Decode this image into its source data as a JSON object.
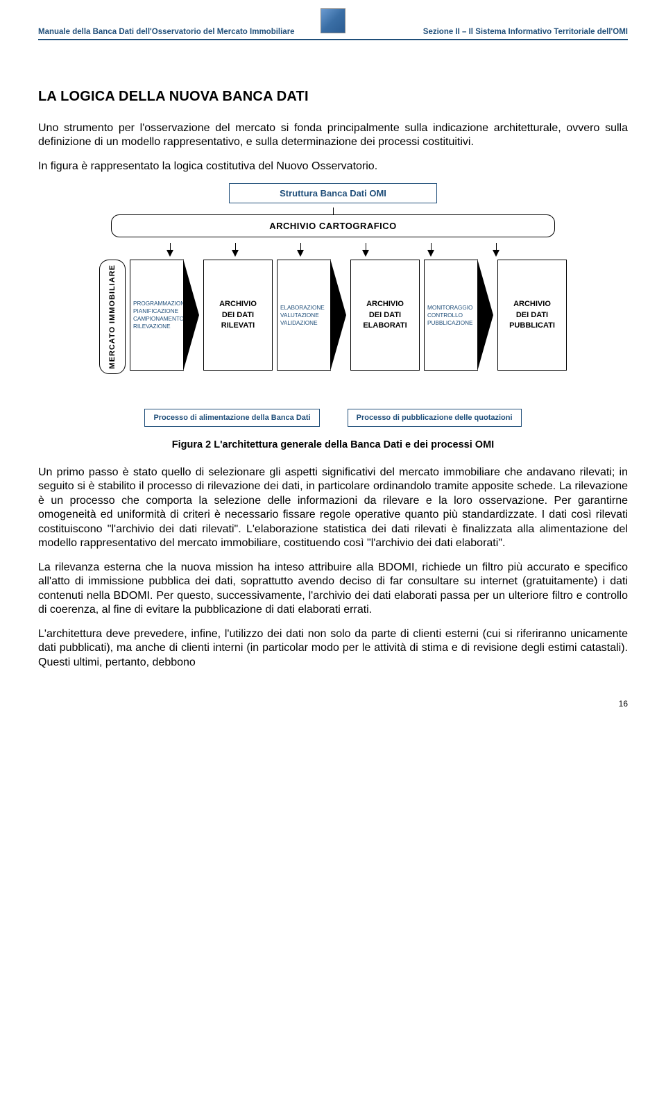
{
  "header": {
    "left": "Manuale della Banca Dati dell'Osservatorio del Mercato Immobiliare",
    "right": "Sezione II – Il Sistema Informativo Territoriale dell'OMI"
  },
  "title": "LA LOGICA DELLA NUOVA BANCA DATI",
  "paragraphs": {
    "p1": "Uno strumento per l'osservazione del mercato si fonda principalmente sulla indicazione architetturale, ovvero sulla definizione di un modello rappresentativo, e sulla determinazione dei processi costituitivi.",
    "p2": "In figura è rappresentato la logica costitutiva del Nuovo Osservatorio.",
    "p3": "Un primo passo è stato quello di selezionare gli aspetti significativi del mercato immobiliare che andavano rilevati; in seguito si è stabilito il processo di rilevazione dei dati, in particolare ordinandolo tramite apposite schede. La rilevazione è un processo che comporta la selezione delle informazioni da rilevare e la loro osservazione. Per garantirne omogeneità ed uniformità di criteri è necessario fissare regole operative quanto più standardizzate. I dati così rilevati costituiscono \"l'archivio dei dati rilevati\". L'elaborazione statistica dei dati rilevati è finalizzata alla alimentazione del modello rappresentativo del mercato immobiliare, costituendo così \"l'archivio dei dati elaborati\".",
    "p4": "La rilevanza esterna che la nuova mission ha inteso attribuire alla BDOMI, richiede un filtro più accurato e specifico all'atto di immissione pubblica dei dati, soprattutto avendo deciso di far consultare su internet (gratuitamente) i dati contenuti nella BDOMI. Per questo, successivamente, l'archivio dei dati elaborati passa per un ulteriore filtro e controllo di coerenza, al fine di evitare la pubblicazione di dati elaborati errati.",
    "p5": "L'architettura deve prevedere, infine, l'utilizzo dei dati non solo da parte di clienti esterni (cui si riferiranno unicamente dati pubblicati), ma anche di clienti interni (in particolar modo per le attività di stima e di revisione degli estimi catastali). Questi ultimi, pertanto, debbono"
  },
  "figure_caption": "Figura 2 L'architettura generale della Banca Dati e dei processi OMI",
  "diagram": {
    "title": "Struttura Banca Dati OMI",
    "carto": "ARCHIVIO CARTOGRAFICO",
    "mercato": "MERCATO IMMOBILIARE",
    "chev1_l1": "PROGRAMMAZIONE",
    "chev1_l2": "PIANIFICAZIONE",
    "chev1_l3": "CAMPIONAMENTO",
    "chev1_l4": "RILEVAZIONE",
    "arch1_l1": "ARCHIVIO",
    "arch1_l2": "DEI DATI",
    "arch1_l3": "RILEVATI",
    "chev2_l1": "ELABORAZIONE",
    "chev2_l2": "VALUTAZIONE",
    "chev2_l3": "VALIDAZIONE",
    "arch2_l1": "ARCHIVIO",
    "arch2_l2": "DEI DATI",
    "arch2_l3": "ELABORATI",
    "chev3_l1": "MONITORAGGIO",
    "chev3_l2": "CONTROLLO",
    "chev3_l3": "PUBBLICAZIONE",
    "arch3_l1": "ARCHIVIO",
    "arch3_l2": "DEI DATI",
    "arch3_l3": "PUBBLICATI",
    "proc1": "Processo di alimentazione della Banca Dati",
    "proc2": "Processo di pubblicazione delle quotazioni"
  },
  "colors": {
    "accent": "#1f4e79",
    "text": "#000000",
    "bg": "#ffffff"
  },
  "page_number": "16"
}
